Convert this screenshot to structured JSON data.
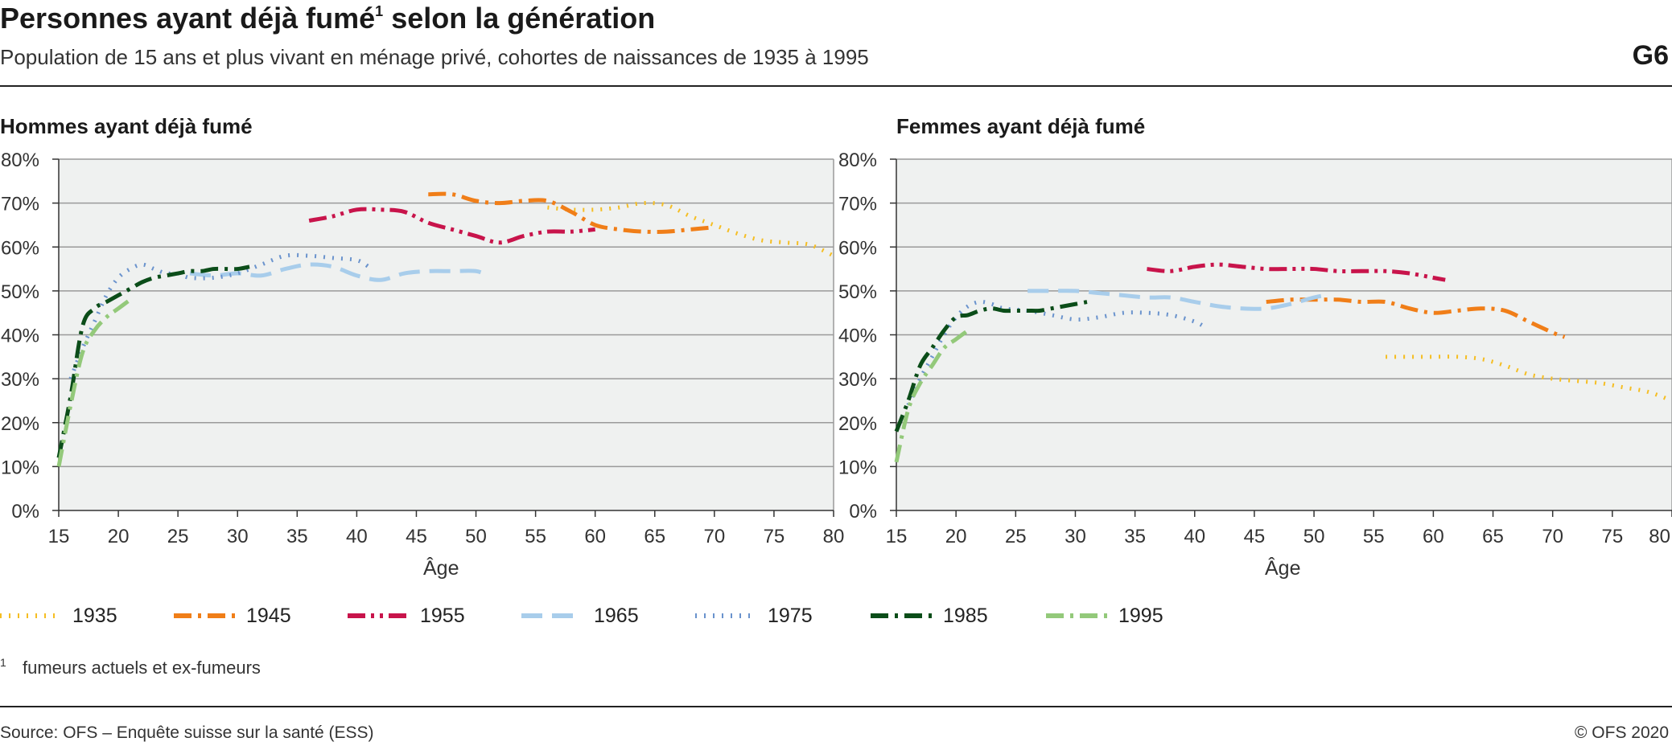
{
  "header": {
    "title_main": "Personnes ayant déjà fumé",
    "title_sup": "1",
    "title_rest": " selon la génération",
    "subtitle": "Population de 15 ans et plus vivant en ménage privé, cohortes de naissances de 1935 à 1995",
    "graphic_number": "G6"
  },
  "footnote": {
    "mark": "1",
    "text": "fumeurs actuels et ex-fumeurs"
  },
  "footer": {
    "source": "Source: OFS – Enquête suisse sur la santé (ESS)",
    "copyright": "© OFS 2020"
  },
  "legend": [
    {
      "name": "1935",
      "color": "#F5BE23",
      "style": "dotted"
    },
    {
      "name": "1945",
      "color": "#F07E18",
      "style": "dash-dot"
    },
    {
      "name": "1955",
      "color": "#C8144B",
      "style": "dash-dot-dot"
    },
    {
      "name": "1965",
      "color": "#A8CDEB",
      "style": "dashed"
    },
    {
      "name": "1975",
      "color": "#6A93CD",
      "style": "dotted"
    },
    {
      "name": "1985",
      "color": "#0B4D19",
      "style": "dash-dot"
    },
    {
      "name": "1995",
      "color": "#93C97A",
      "style": "dash-dot"
    }
  ],
  "chart_data": [
    {
      "type": "line",
      "title": "Hommes ayant déjà fumé",
      "xlabel": "Âge",
      "ylabel": "",
      "xlim": [
        15,
        80
      ],
      "ylim": [
        0,
        80
      ],
      "xticks": [
        "15",
        "20",
        "25",
        "30",
        "35",
        "40",
        "45",
        "50",
        "55",
        "60",
        "65",
        "70",
        "75",
        "80"
      ],
      "yticks": [
        "0%",
        "10%",
        "20%",
        "30%",
        "40%",
        "50%",
        "60%",
        "70%",
        "80%"
      ],
      "grid": true,
      "series": [
        {
          "name": "1935",
          "x": [
            56,
            58,
            60,
            62,
            64,
            66,
            68,
            70,
            72,
            74,
            76,
            78,
            80
          ],
          "y": [
            69,
            68.5,
            68.5,
            69,
            70,
            69.5,
            67,
            65,
            63,
            61.5,
            61,
            60.5,
            58
          ]
        },
        {
          "name": "1945",
          "x": [
            46,
            48,
            50,
            52,
            54,
            56,
            58,
            60,
            62,
            64,
            66,
            68,
            70
          ],
          "y": [
            72,
            72,
            70.5,
            70,
            70.5,
            70.5,
            68,
            65,
            64,
            63.5,
            63.5,
            64,
            64.5
          ]
        },
        {
          "name": "1955",
          "x": [
            36,
            38,
            40,
            42,
            44,
            46,
            48,
            50,
            52,
            54,
            56,
            58,
            60
          ],
          "y": [
            66,
            67,
            68.5,
            68.5,
            68,
            65.5,
            64,
            62.5,
            61,
            62.5,
            63.5,
            63.5,
            64
          ]
        },
        {
          "name": "1965",
          "x": [
            26,
            28,
            30,
            32,
            34,
            36,
            38,
            40,
            42,
            44,
            46,
            48,
            50,
            51
          ],
          "y": [
            54,
            53.5,
            54,
            53.5,
            55,
            56,
            55.5,
            53.5,
            52.5,
            54,
            54.5,
            54.5,
            54.5,
            53.5
          ]
        },
        {
          "name": "1975",
          "x": [
            16,
            17,
            18,
            19,
            20,
            21,
            22,
            23,
            24,
            25,
            26,
            28,
            30,
            32,
            34,
            36,
            38,
            40,
            41
          ],
          "y": [
            30,
            37,
            43,
            49,
            53,
            55,
            56,
            55,
            54,
            54,
            53,
            53,
            54,
            56,
            58,
            58,
            57.5,
            57,
            55.5
          ]
        },
        {
          "name": "1985",
          "x": [
            15,
            16,
            17,
            18,
            19,
            20,
            21,
            22,
            23,
            24,
            25,
            26,
            27,
            28,
            29,
            30,
            31
          ],
          "y": [
            12,
            26,
            42,
            46,
            47.5,
            49,
            50.5,
            52,
            53,
            53.5,
            54,
            54.5,
            54.5,
            55,
            55,
            55,
            55.5
          ]
        },
        {
          "name": "1995",
          "x": [
            15,
            16,
            17,
            18,
            19,
            20,
            21
          ],
          "y": [
            10,
            24,
            36,
            41,
            44,
            46,
            48
          ]
        }
      ]
    },
    {
      "type": "line",
      "title": "Femmes ayant déjà fumé",
      "xlabel": "Âge",
      "ylabel": "",
      "xlim": [
        15,
        80
      ],
      "ylim": [
        0,
        80
      ],
      "xticks": [
        "15",
        "20",
        "25",
        "30",
        "35",
        "40",
        "45",
        "50",
        "55",
        "60",
        "65",
        "70",
        "75",
        "80"
      ],
      "yticks": [
        "0%",
        "10%",
        "20%",
        "30%",
        "40%",
        "50%",
        "60%",
        "70%",
        "80%"
      ],
      "grid": true,
      "series": [
        {
          "name": "1935",
          "x": [
            56,
            58,
            60,
            62,
            64,
            66,
            68,
            70,
            72,
            74,
            76,
            78,
            80
          ],
          "y": [
            35,
            35,
            35,
            35,
            34.5,
            33,
            31,
            30,
            29.5,
            29,
            28,
            27,
            25
          ]
        },
        {
          "name": "1945",
          "x": [
            46,
            48,
            50,
            52,
            54,
            56,
            58,
            60,
            62,
            64,
            66,
            68,
            70,
            71
          ],
          "y": [
            47.5,
            48,
            48,
            48,
            47.5,
            47.5,
            46,
            45,
            45.5,
            46,
            45.5,
            43,
            40.5,
            39.5
          ]
        },
        {
          "name": "1955",
          "x": [
            36,
            38,
            40,
            42,
            44,
            46,
            48,
            50,
            52,
            54,
            56,
            58,
            60,
            61
          ],
          "y": [
            55,
            54.5,
            55.5,
            56,
            55.5,
            55,
            55,
            55,
            54.5,
            54.5,
            54.5,
            54,
            53,
            52.5
          ]
        },
        {
          "name": "1965",
          "x": [
            26,
            28,
            30,
            32,
            34,
            36,
            38,
            40,
            42,
            44,
            46,
            48,
            50,
            51
          ],
          "y": [
            50,
            50,
            50,
            49.5,
            49,
            48.5,
            48.5,
            47.5,
            46.5,
            46,
            46,
            47,
            48.5,
            49
          ]
        },
        {
          "name": "1975",
          "x": [
            16,
            17,
            18,
            19,
            20,
            21,
            22,
            23,
            24,
            26,
            28,
            30,
            32,
            34,
            36,
            38,
            40,
            41
          ],
          "y": [
            24,
            30,
            35,
            40,
            44,
            46.5,
            47.5,
            47,
            46,
            45.5,
            44.5,
            43.5,
            44,
            45,
            45,
            44.5,
            43,
            41.5
          ]
        },
        {
          "name": "1985",
          "x": [
            15,
            16,
            17,
            18,
            19,
            20,
            21,
            22,
            23,
            24,
            25,
            26,
            27,
            28,
            29,
            30,
            31
          ],
          "y": [
            18,
            25,
            33,
            37,
            41,
            44,
            44.5,
            45.5,
            46,
            45.5,
            45.5,
            45.5,
            45.5,
            46,
            46.5,
            47,
            47.5
          ]
        },
        {
          "name": "1995",
          "x": [
            15,
            16,
            17,
            18,
            19,
            20,
            21
          ],
          "y": [
            11,
            23,
            29,
            33,
            37,
            39,
            41
          ]
        }
      ]
    }
  ]
}
